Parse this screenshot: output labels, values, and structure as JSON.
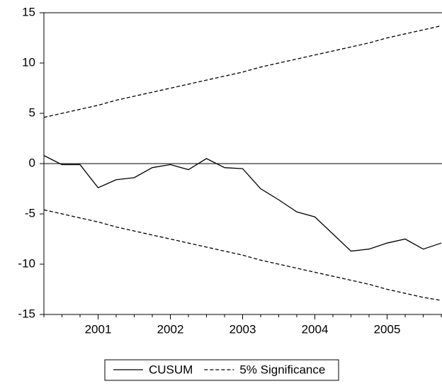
{
  "chart_data": {
    "type": "line",
    "categories": [
      null,
      null,
      null,
      "2001",
      null,
      null,
      null,
      "2002",
      null,
      null,
      null,
      "2003",
      null,
      null,
      null,
      "2004",
      null,
      null,
      null,
      "2005",
      null,
      null,
      null
    ],
    "series": [
      {
        "name": "CUSUM",
        "color": "#000000",
        "dash": false,
        "values": [
          0.8,
          -0.1,
          -0.1,
          -2.4,
          -1.6,
          -1.4,
          -0.4,
          -0.1,
          -0.6,
          0.5,
          -0.4,
          -0.5,
          -2.5,
          -3.6,
          -4.8,
          -5.3,
          -7.0,
          -8.7,
          -8.5,
          -7.9,
          -7.5,
          -8.5,
          -7.9
        ]
      },
      {
        "name": "5% Significance",
        "color": "#000000",
        "dash": true,
        "values": [
          4.6,
          5.0,
          5.4,
          5.8,
          6.3,
          6.7,
          7.1,
          7.5,
          7.9,
          8.3,
          8.7,
          9.1,
          9.6,
          10.0,
          10.4,
          10.8,
          11.2,
          11.6,
          12.0,
          12.5,
          12.9,
          13.3,
          13.7
        ],
        "lower": [
          -4.6,
          -5.0,
          -5.4,
          -5.8,
          -6.3,
          -6.7,
          -7.1,
          -7.5,
          -7.9,
          -8.3,
          -8.7,
          -9.1,
          -9.6,
          -10.0,
          -10.4,
          -10.8,
          -11.2,
          -11.6,
          -12.0,
          -12.5,
          -12.9,
          -13.3,
          -13.6
        ]
      }
    ],
    "ylim": [
      -15,
      15
    ],
    "yticks": [
      -15,
      -10,
      -5,
      0,
      5,
      10,
      15
    ],
    "zero_line": true,
    "legend": "bottom"
  }
}
